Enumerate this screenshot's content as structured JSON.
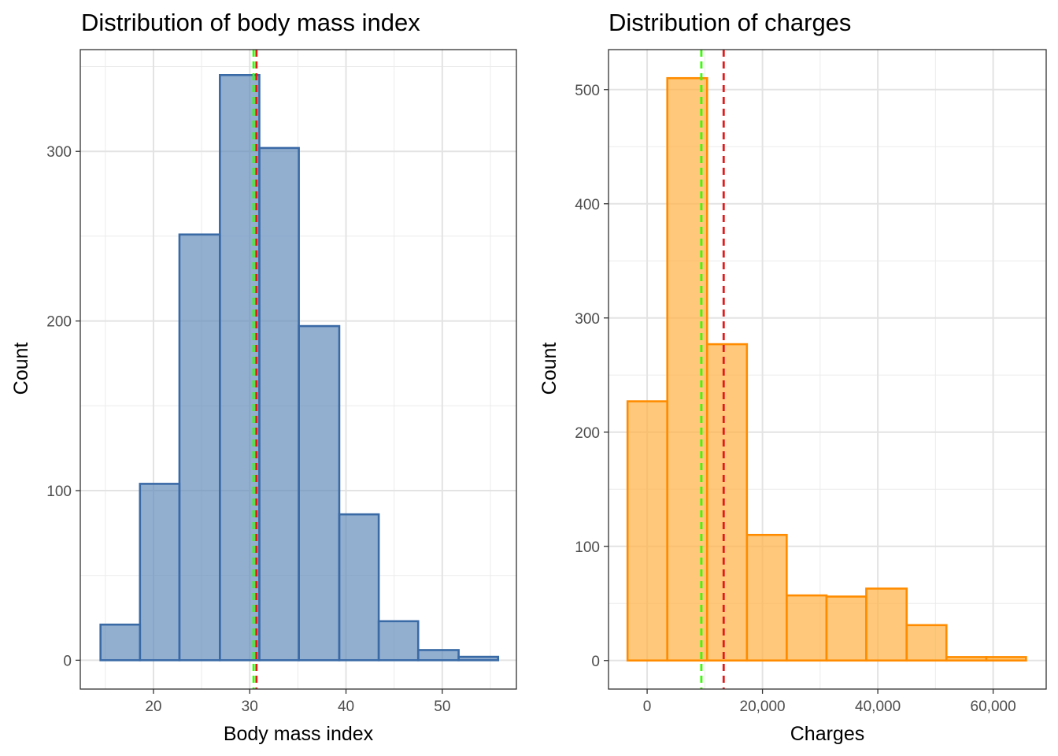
{
  "chart_data": [
    {
      "type": "bar",
      "title": "Distribution of body mass index",
      "xlabel": "Body mass index",
      "ylabel": "Count",
      "xlim": [
        12.4,
        57.7
      ],
      "ylim": [
        -17,
        360
      ],
      "x_ticks": [
        20,
        30,
        40,
        50
      ],
      "x_tick_labels": [
        "20",
        "30",
        "40",
        "50"
      ],
      "y_ticks": [
        0,
        100,
        200,
        300
      ],
      "y_tick_labels": [
        "0",
        "100",
        "200",
        "300"
      ],
      "grid": true,
      "bins": [
        {
          "x0": 14.5,
          "x1": 18.6,
          "count": 21
        },
        {
          "x0": 18.6,
          "x1": 22.7,
          "count": 104
        },
        {
          "x0": 22.7,
          "x1": 26.9,
          "count": 251
        },
        {
          "x0": 26.9,
          "x1": 31.0,
          "count": 345
        },
        {
          "x0": 31.0,
          "x1": 35.1,
          "count": 302
        },
        {
          "x0": 35.1,
          "x1": 39.3,
          "count": 197
        },
        {
          "x0": 39.3,
          "x1": 43.4,
          "count": 86
        },
        {
          "x0": 43.4,
          "x1": 47.5,
          "count": 23
        },
        {
          "x0": 47.5,
          "x1": 51.7,
          "count": 6
        },
        {
          "x0": 51.7,
          "x1": 55.8,
          "count": 2
        }
      ],
      "fill": "#5b86b8",
      "fill_opacity": 0.66,
      "stroke": "#3a6aa6",
      "reference_lines": [
        {
          "stat": "median",
          "x": 30.4,
          "color": "#33ff00"
        },
        {
          "stat": "mean",
          "x": 30.7,
          "color": "#e31a1c"
        }
      ]
    },
    {
      "type": "bar",
      "title": "Distribution of charges",
      "xlabel": "Charges",
      "ylabel": "Count",
      "xlim": [
        -6700,
        69200
      ],
      "ylim": [
        -25,
        535
      ],
      "x_ticks": [
        0,
        20000,
        40000,
        60000
      ],
      "x_tick_labels": [
        "0",
        "20,000",
        "40,000",
        "60,000"
      ],
      "y_ticks": [
        0,
        100,
        200,
        300,
        400,
        500
      ],
      "y_tick_labels": [
        "0",
        "100",
        "200",
        "300",
        "400",
        "500"
      ],
      "grid": true,
      "bins": [
        {
          "x0": -3400,
          "x1": 3500,
          "count": 227
        },
        {
          "x0": 3500,
          "x1": 10400,
          "count": 510
        },
        {
          "x0": 10400,
          "x1": 17300,
          "count": 277
        },
        {
          "x0": 17300,
          "x1": 24200,
          "count": 110
        },
        {
          "x0": 24200,
          "x1": 31100,
          "count": 57
        },
        {
          "x0": 31100,
          "x1": 38000,
          "count": 56
        },
        {
          "x0": 38000,
          "x1": 45000,
          "count": 63
        },
        {
          "x0": 45000,
          "x1": 51900,
          "count": 31
        },
        {
          "x0": 51900,
          "x1": 58800,
          "count": 3
        },
        {
          "x0": 58800,
          "x1": 65700,
          "count": 3
        }
      ],
      "fill": "#ffb347",
      "fill_opacity": 0.72,
      "stroke": "#ff8c00",
      "reference_lines": [
        {
          "stat": "median",
          "x": 9400,
          "color": "#33ff00"
        },
        {
          "stat": "mean",
          "x": 13270,
          "color": "#e31a1c"
        }
      ]
    }
  ]
}
